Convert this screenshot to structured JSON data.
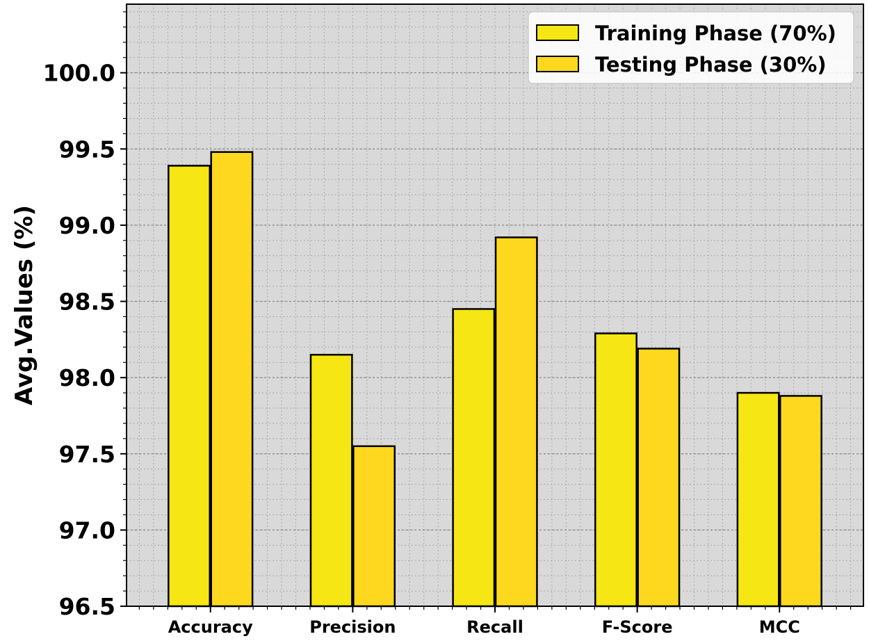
{
  "chart_data": {
    "type": "bar",
    "categories": [
      "Accuracy",
      "Precision",
      "Recall",
      "F-Score",
      "MCC"
    ],
    "series": [
      {
        "name": "Training Phase (70%)",
        "values": [
          99.39,
          98.15,
          98.45,
          98.29,
          97.9
        ],
        "color": "#f5e614"
      },
      {
        "name": "Testing Phase (30%)",
        "values": [
          99.48,
          97.55,
          98.92,
          98.19,
          97.88
        ],
        "color": "#fdd81f"
      }
    ],
    "title": "",
    "xlabel": "",
    "ylabel": "Avg.Values (%)",
    "ylim": [
      96.5,
      100.45
    ],
    "yticks": [
      "96.5",
      "97.0",
      "97.5",
      "98.0",
      "98.5",
      "99.0",
      "99.5",
      "100.0"
    ],
    "grid": true,
    "minor_grid": true,
    "legend_position": "top-right",
    "background": "#d9d9d9"
  }
}
